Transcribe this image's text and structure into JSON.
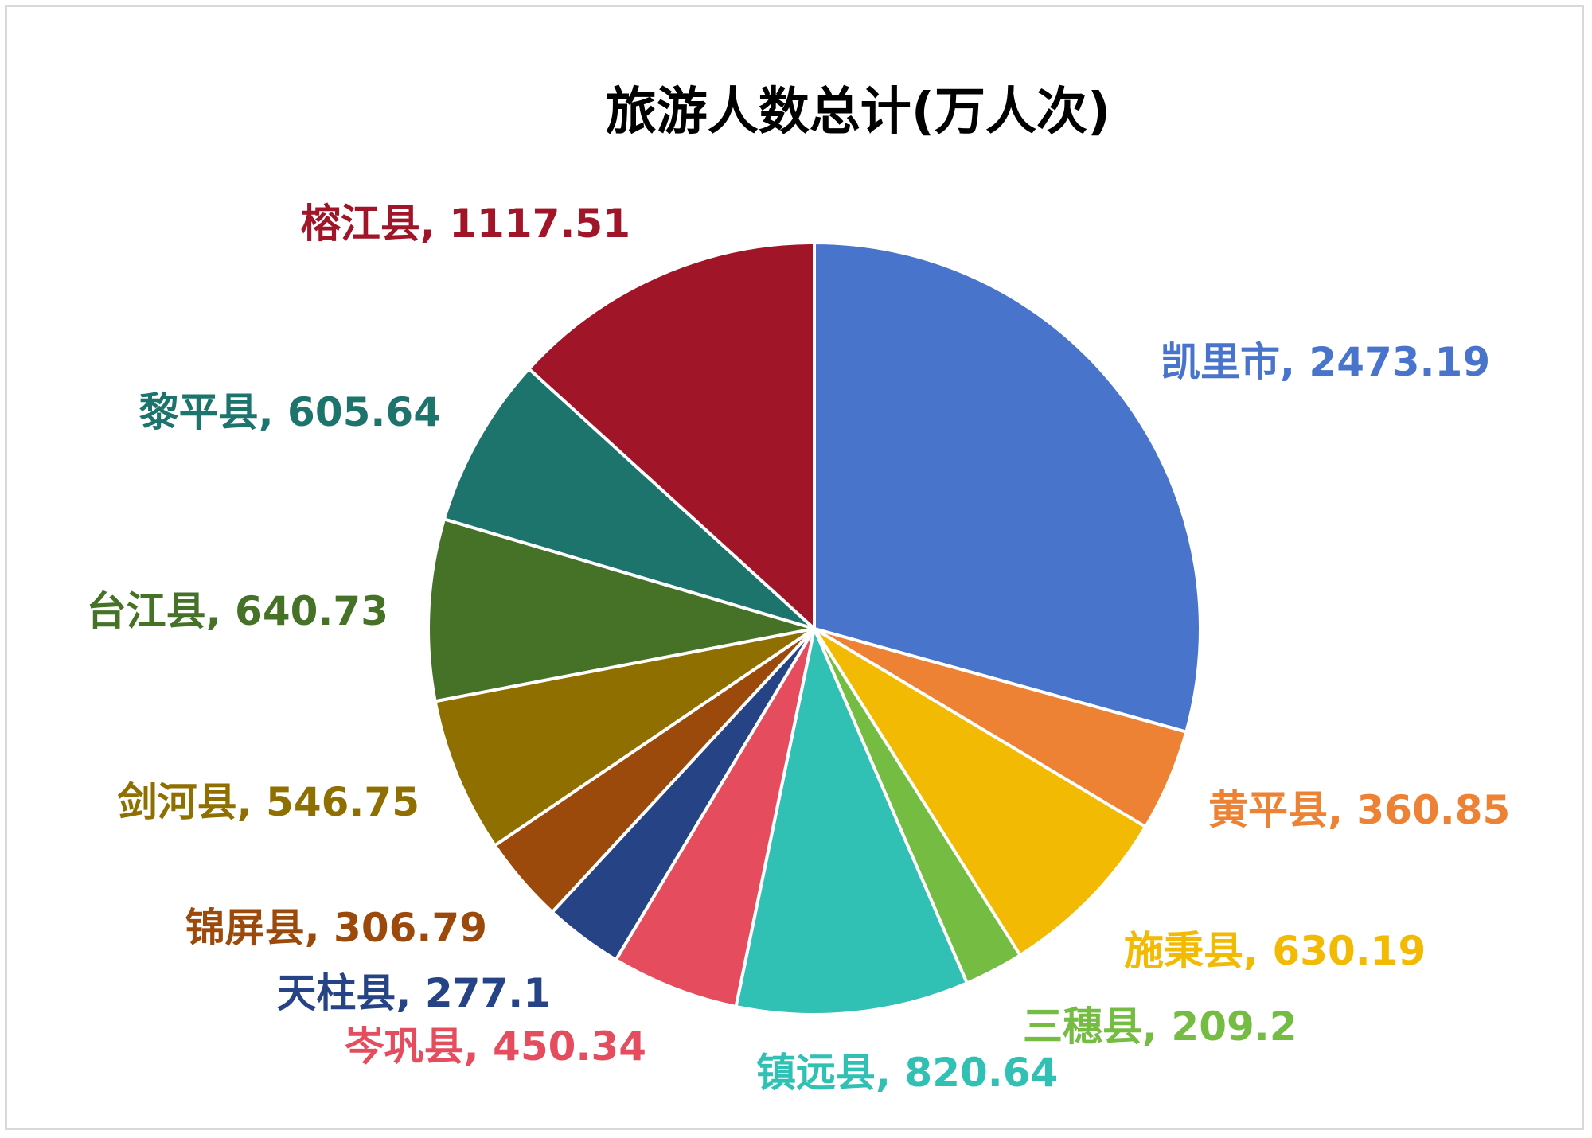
{
  "chart_data": {
    "type": "pie",
    "title": "旅游人数总计(万人次)",
    "start_angle_deg": 0,
    "direction": "clockwise",
    "slices": [
      {
        "label": "凯里市",
        "value": 2473.19,
        "value_text": "2473.19",
        "color": "#4874CB"
      },
      {
        "label": "黄平县",
        "value": 360.85,
        "value_text": "360.85",
        "color": "#EE8234"
      },
      {
        "label": "施秉县",
        "value": 630.19,
        "value_text": "630.19",
        "color": "#F2BA02"
      },
      {
        "label": "三穗县",
        "value": 209.2,
        "value_text": "209.2",
        "color": "#75BD42"
      },
      {
        "label": "镇远县",
        "value": 820.64,
        "value_text": "820.64",
        "color": "#30C0B4"
      },
      {
        "label": "岑巩县",
        "value": 450.34,
        "value_text": "450.34",
        "color": "#E54C5E"
      },
      {
        "label": "天柱县",
        "value": 277.1,
        "value_text": "277.1",
        "color": "#264385"
      },
      {
        "label": "锦屏县",
        "value": 306.79,
        "value_text": "306.79",
        "color": "#9B4A0C"
      },
      {
        "label": "剑河县",
        "value": 546.75,
        "value_text": "546.75",
        "color": "#8E6F00"
      },
      {
        "label": "台江县",
        "value": 640.73,
        "value_text": "640.73",
        "color": "#467228"
      },
      {
        "label": "黎平县",
        "value": 605.64,
        "value_text": "605.64",
        "color": "#1D746C"
      },
      {
        "label": "榕江县",
        "value": 1117.51,
        "value_text": "1117.51",
        "color": "#A01527"
      }
    ]
  }
}
